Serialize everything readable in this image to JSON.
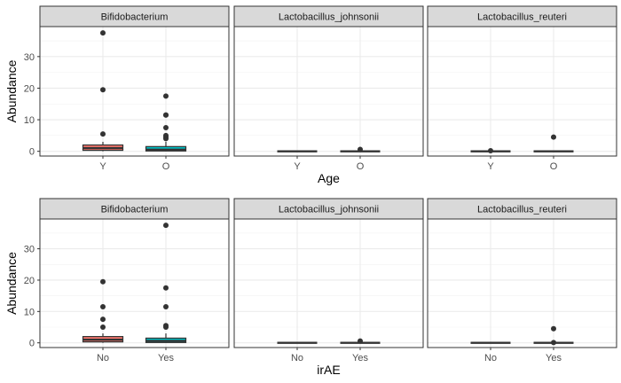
{
  "chart_data": [
    {
      "type": "boxplot",
      "xlabel": "Age",
      "ylabel": "Abundance",
      "categories": [
        "Y",
        "O"
      ],
      "ylim": [
        -1.5,
        39.5
      ],
      "yticks": [
        0,
        10,
        20,
        30
      ],
      "fill_colors": [
        "#F8766D",
        "#00BFC4"
      ],
      "facets": [
        {
          "name": "Bifidobacterium",
          "boxes": [
            {
              "category": "Y",
              "min": 0,
              "q1": 0.3,
              "median": 1.0,
              "q3": 2.0,
              "max": 3.0,
              "outliers": [
                5.5,
                19.5,
                37.5
              ]
            },
            {
              "category": "O",
              "min": 0,
              "q1": 0.1,
              "median": 0.5,
              "q3": 1.5,
              "max": 3.0,
              "outliers": [
                4.0,
                4.5,
                5.0,
                7.5,
                11.5,
                11.5,
                17.5
              ]
            }
          ]
        },
        {
          "name": "Lactobacillus_johnsonii",
          "boxes": [
            {
              "category": "Y",
              "min": 0,
              "q1": 0,
              "median": 0,
              "q3": 0,
              "max": 0,
              "outliers": []
            },
            {
              "category": "O",
              "min": 0,
              "q1": 0,
              "median": 0,
              "q3": 0,
              "max": 0,
              "outliers": [
                0.6
              ]
            }
          ]
        },
        {
          "name": "Lactobacillus_reuteri",
          "boxes": [
            {
              "category": "Y",
              "min": 0,
              "q1": 0,
              "median": 0,
              "q3": 0,
              "max": 0,
              "outliers": [
                0.2
              ]
            },
            {
              "category": "O",
              "min": 0,
              "q1": 0,
              "median": 0,
              "q3": 0,
              "max": 0,
              "outliers": [
                4.5
              ]
            }
          ]
        }
      ]
    },
    {
      "type": "boxplot",
      "xlabel": "irAE",
      "ylabel": "Abundance",
      "categories": [
        "No",
        "Yes"
      ],
      "ylim": [
        -1.5,
        39.5
      ],
      "yticks": [
        0,
        10,
        20,
        30
      ],
      "fill_colors": [
        "#F8766D",
        "#00BFC4"
      ],
      "facets": [
        {
          "name": "Bifidobacterium",
          "boxes": [
            {
              "category": "No",
              "min": 0,
              "q1": 0.3,
              "median": 1.0,
              "q3": 2.0,
              "max": 3.0,
              "outliers": [
                5.0,
                7.5,
                11.5,
                19.5
              ]
            },
            {
              "category": "Yes",
              "min": 0,
              "q1": 0.1,
              "median": 0.6,
              "q3": 1.5,
              "max": 3.0,
              "outliers": [
                5.0,
                5.5,
                11.5,
                17.5,
                37.5
              ]
            }
          ]
        },
        {
          "name": "Lactobacillus_johnsonii",
          "boxes": [
            {
              "category": "No",
              "min": 0,
              "q1": 0,
              "median": 0,
              "q3": 0,
              "max": 0,
              "outliers": []
            },
            {
              "category": "Yes",
              "min": 0,
              "q1": 0,
              "median": 0,
              "q3": 0,
              "max": 0,
              "outliers": [
                0.6
              ]
            }
          ]
        },
        {
          "name": "Lactobacillus_reuteri",
          "boxes": [
            {
              "category": "No",
              "min": 0,
              "q1": 0,
              "median": 0,
              "q3": 0,
              "max": 0,
              "outliers": []
            },
            {
              "category": "Yes",
              "min": 0,
              "q1": 0,
              "median": 0,
              "q3": 0,
              "max": 0,
              "outliers": [
                0.1,
                4.5
              ]
            }
          ]
        }
      ]
    }
  ]
}
